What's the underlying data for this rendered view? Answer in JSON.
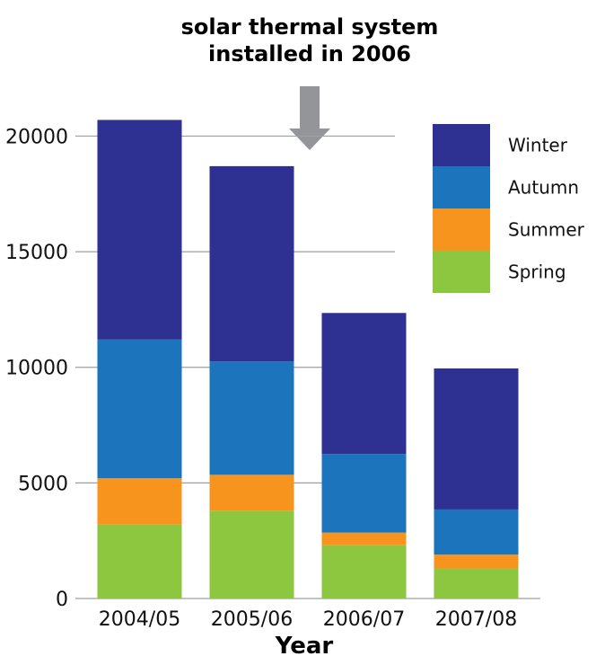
{
  "chart_data": {
    "type": "bar",
    "stacked": true,
    "title": "",
    "annotation": {
      "lines": [
        "solar thermal system",
        "installed in 2006"
      ],
      "marker": "down-arrow-icon",
      "points_to_category": "2005/06"
    },
    "xlabel": "Year",
    "ylabel": "",
    "categories": [
      "2004/05",
      "2005/06",
      "2006/07",
      "2007/08"
    ],
    "ylim": [
      0,
      22000
    ],
    "yticks": [
      0,
      5000,
      10000,
      15000,
      20000
    ],
    "grid": true,
    "legend_position": "top-right",
    "series": [
      {
        "name": "Spring",
        "color": "#8dc63f",
        "values": [
          3200,
          3800,
          2300,
          1300
        ]
      },
      {
        "name": "Summer",
        "color": "#f7941d",
        "values": [
          2000,
          1550,
          550,
          600
        ]
      },
      {
        "name": "Autumn",
        "color": "#1c75bc",
        "values": [
          6000,
          4900,
          3400,
          1950
        ]
      },
      {
        "name": "Winter",
        "color": "#2e3192",
        "values": [
          9500,
          8450,
          6100,
          6100
        ]
      }
    ]
  }
}
